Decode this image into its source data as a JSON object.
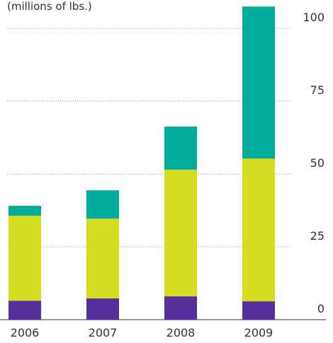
{
  "chart_data": {
    "type": "stacked_bar",
    "subtitle": "(millions of lbs.)",
    "categories": [
      "2006",
      "2007",
      "2008",
      "2009"
    ],
    "series": [
      {
        "color": "#56309a",
        "values": [
          6.5,
          7.3,
          8,
          6.3
        ]
      },
      {
        "color": "#d4dd20",
        "values": [
          29.2,
          27.4,
          43.5,
          49
        ]
      },
      {
        "color": "#00ad9d",
        "values": [
          3.4,
          9.7,
          14.8,
          52.2
        ]
      }
    ],
    "ylim": [
      0,
      110
    ],
    "yticks": [
      0,
      25,
      50,
      75,
      100
    ],
    "grid": true
  }
}
